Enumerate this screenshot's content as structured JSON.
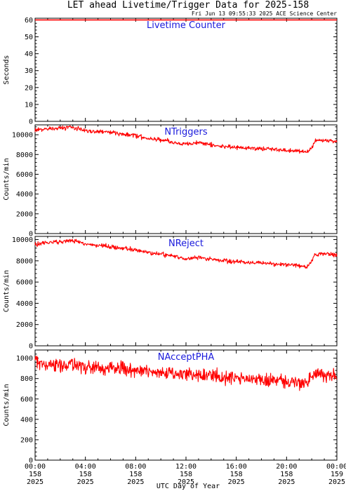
{
  "page": {
    "title": "LET ahead Livetime/Trigger Data for 2025-158",
    "stamp": "Fri Jun 13 09:55:33 2025 ACE Science Center",
    "x_axis_label": "UTC Day of Year"
  },
  "colors": {
    "series": "#ff0000",
    "panel_title": "#1a1adc",
    "axis": "#000000"
  },
  "x_ticks": [
    {
      "hour": 0,
      "time": "00:00",
      "doy": "158",
      "year": "2025"
    },
    {
      "hour": 4,
      "time": "04:00",
      "doy": "158",
      "year": "2025"
    },
    {
      "hour": 8,
      "time": "08:00",
      "doy": "158",
      "year": "2025"
    },
    {
      "hour": 12,
      "time": "12:00",
      "doy": "158",
      "year": "2025"
    },
    {
      "hour": 16,
      "time": "16:00",
      "doy": "158",
      "year": "2025"
    },
    {
      "hour": 20,
      "time": "20:00",
      "doy": "158",
      "year": "2025"
    },
    {
      "hour": 24,
      "time": "00:00",
      "doy": "159",
      "year": "2025"
    }
  ],
  "chart_data": [
    {
      "type": "line",
      "title": "Livetime Counter",
      "ylabel": "Seconds",
      "ylim": [
        0,
        61
      ],
      "yticks": [
        0,
        10,
        20,
        30,
        40,
        50,
        60
      ],
      "xlim": [
        0,
        24
      ],
      "series": [
        {
          "x": [
            0,
            24
          ],
          "y": [
            60,
            60
          ],
          "noise": 0
        }
      ]
    },
    {
      "type": "line",
      "title": "NTriggers",
      "ylabel": "Counts/min",
      "ylim": [
        0,
        11000
      ],
      "yticks": [
        0,
        2000,
        4000,
        6000,
        8000,
        10000
      ],
      "xlim": [
        0,
        24
      ],
      "series": [
        {
          "x": [
            0,
            1,
            2,
            3,
            4,
            5,
            6,
            7,
            8,
            9,
            10,
            11,
            12,
            13,
            14,
            15,
            16,
            17,
            18,
            19,
            20,
            21,
            21.6,
            22,
            22.3,
            23,
            24
          ],
          "y": [
            10500,
            10600,
            10650,
            10750,
            10450,
            10300,
            10250,
            10100,
            9900,
            9650,
            9500,
            9200,
            9050,
            9200,
            9000,
            8800,
            8700,
            8650,
            8600,
            8550,
            8450,
            8350,
            8250,
            8700,
            9400,
            9450,
            9300
          ],
          "noise": 180
        }
      ]
    },
    {
      "type": "line",
      "title": "NReject",
      "ylabel": "Counts/min",
      "ylim": [
        0,
        10300
      ],
      "yticks": [
        0,
        2000,
        4000,
        6000,
        8000,
        10000
      ],
      "xlim": [
        0,
        24
      ],
      "series": [
        {
          "x": [
            0,
            1,
            2,
            3,
            4,
            5,
            6,
            7,
            8,
            9,
            10,
            11,
            12,
            13,
            14,
            15,
            16,
            17,
            18,
            19,
            20,
            21,
            21.6,
            22,
            22.3,
            23,
            24
          ],
          "y": [
            9550,
            9700,
            9800,
            9900,
            9600,
            9450,
            9350,
            9200,
            9000,
            8800,
            8650,
            8400,
            8200,
            8350,
            8150,
            8000,
            7900,
            7850,
            7800,
            7700,
            7650,
            7550,
            7400,
            8000,
            8650,
            8700,
            8500
          ],
          "noise": 170
        }
      ]
    },
    {
      "type": "line",
      "title": "NAcceptPHA",
      "ylabel": "Counts/min",
      "ylim": [
        0,
        1080
      ],
      "yticks": [
        0,
        200,
        400,
        600,
        800,
        1000
      ],
      "xlim": [
        0,
        24
      ],
      "series": [
        {
          "x": [
            0,
            1,
            2,
            3,
            4,
            5,
            6,
            7,
            8,
            9,
            10,
            11,
            12,
            13,
            14,
            15,
            16,
            17,
            18,
            19,
            20,
            21,
            21.6,
            22,
            22.3,
            23,
            24
          ],
          "y": [
            950,
            940,
            930,
            940,
            920,
            910,
            905,
            890,
            880,
            870,
            860,
            850,
            840,
            835,
            825,
            815,
            810,
            800,
            790,
            780,
            770,
            760,
            750,
            810,
            840,
            845,
            830
          ],
          "noise": 55
        }
      ]
    }
  ]
}
